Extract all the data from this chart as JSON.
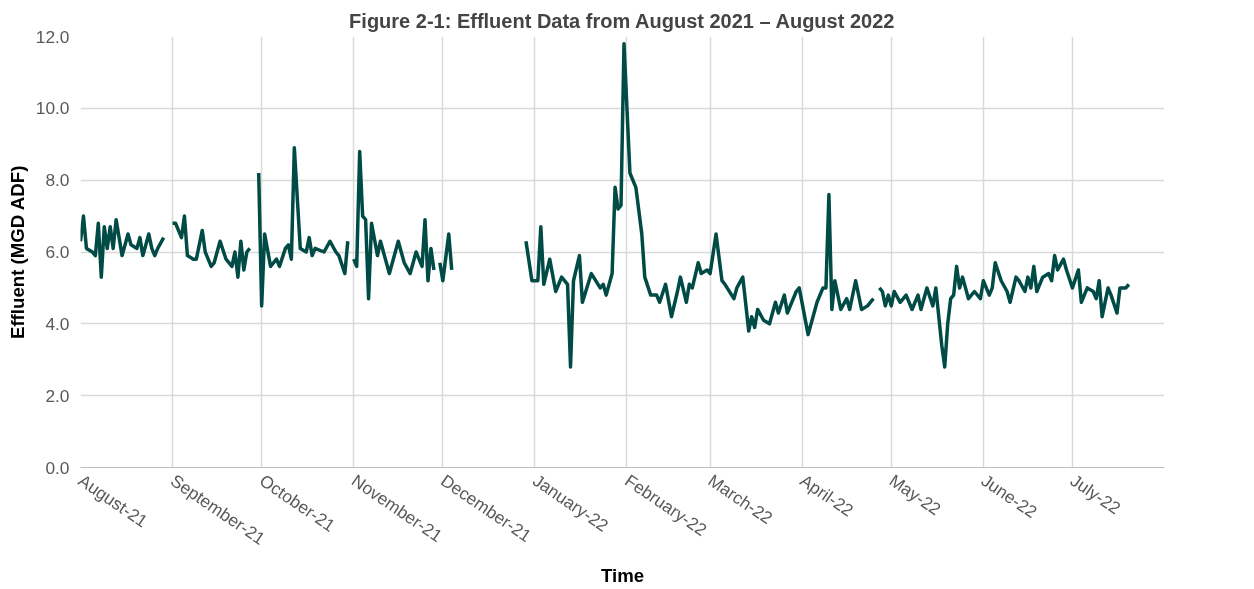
{
  "chart_data": {
    "type": "line",
    "title": "Figure 2-1: Effluent Data from August 2021 – August 2022",
    "xlabel": "Time",
    "ylabel": "Effluent (MGD ADF)",
    "x": [
      "2021-08-01",
      "2021-08-02",
      "2021-08-03",
      "2021-08-05",
      "2021-08-06",
      "2021-08-07",
      "2021-08-08",
      "2021-08-09",
      "2021-08-10",
      "2021-08-11",
      "2021-08-12",
      "2021-08-13",
      "2021-08-15",
      "2021-08-17",
      "2021-08-18",
      "2021-08-20",
      "2021-08-21",
      "2021-08-22",
      "2021-08-24",
      "2021-08-25",
      "2021-08-26",
      "2021-08-27",
      "2021-08-29",
      "2021-08-30",
      "2021-09-01",
      "2021-09-02",
      "2021-09-03",
      "2021-09-04",
      "2021-09-05",
      "2021-09-06",
      "2021-09-08",
      "2021-09-09",
      "2021-09-11",
      "2021-09-12",
      "2021-09-14",
      "2021-09-15",
      "2021-09-17",
      "2021-09-19",
      "2021-09-21",
      "2021-09-22",
      "2021-09-23",
      "2021-09-24",
      "2021-09-25",
      "2021-09-26",
      "2021-09-27",
      "2021-09-28",
      "2021-09-30",
      "2021-10-01",
      "2021-10-02",
      "2021-10-04",
      "2021-10-06",
      "2021-10-07",
      "2021-10-09",
      "2021-10-10",
      "2021-10-11",
      "2021-10-12",
      "2021-10-14",
      "2021-10-16",
      "2021-10-17",
      "2021-10-18",
      "2021-10-19",
      "2021-10-22",
      "2021-10-24",
      "2021-10-26",
      "2021-10-27",
      "2021-10-29",
      "2021-10-30",
      "2021-10-31",
      "2021-11-01",
      "2021-11-02",
      "2021-11-03",
      "2021-11-04",
      "2021-11-05",
      "2021-11-06",
      "2021-11-07",
      "2021-11-09",
      "2021-11-10",
      "2021-11-13",
      "2021-11-16",
      "2021-11-18",
      "2021-11-20",
      "2021-11-22",
      "2021-11-24",
      "2021-11-25",
      "2021-11-26",
      "2021-11-27",
      "2021-11-28",
      "2021-11-29",
      "2021-11-30",
      "2021-12-01",
      "2021-12-03",
      "2021-12-04",
      "2021-12-15",
      "2021-12-29",
      "2021-12-31",
      "2022-01-02",
      "2022-01-03",
      "2022-01-04",
      "2022-01-06",
      "2022-01-08",
      "2022-01-10",
      "2022-01-12",
      "2022-01-13",
      "2022-01-14",
      "2022-01-16",
      "2022-01-17",
      "2022-01-20",
      "2022-01-23",
      "2022-01-24",
      "2022-01-25",
      "2022-01-27",
      "2022-01-28",
      "2022-01-29",
      "2022-01-30",
      "2022-01-31",
      "2022-02-02",
      "2022-02-04",
      "2022-02-06",
      "2022-02-07",
      "2022-02-09",
      "2022-02-11",
      "2022-02-12",
      "2022-02-14",
      "2022-02-16",
      "2022-02-18",
      "2022-02-19",
      "2022-02-21",
      "2022-02-22",
      "2022-02-23",
      "2022-02-25",
      "2022-02-26",
      "2022-02-28",
      "2022-03-01",
      "2022-03-03",
      "2022-03-05",
      "2022-03-06",
      "2022-03-09",
      "2022-03-10",
      "2022-03-12",
      "2022-03-14",
      "2022-03-15",
      "2022-03-16",
      "2022-03-17",
      "2022-03-19",
      "2022-03-21",
      "2022-03-23",
      "2022-03-24",
      "2022-03-26",
      "2022-03-27",
      "2022-03-30",
      "2022-03-31",
      "2022-04-03",
      "2022-04-06",
      "2022-04-08",
      "2022-04-09",
      "2022-04-10",
      "2022-04-11",
      "2022-04-12",
      "2022-04-14",
      "2022-04-16",
      "2022-04-17",
      "2022-04-19",
      "2022-04-21",
      "2022-04-23",
      "2022-04-25",
      "2022-04-26",
      "2022-04-27",
      "2022-04-28",
      "2022-04-29",
      "2022-04-30",
      "2022-05-01",
      "2022-05-02",
      "2022-05-04",
      "2022-05-06",
      "2022-05-08",
      "2022-05-10",
      "2022-05-11",
      "2022-05-13",
      "2022-05-15",
      "2022-05-16",
      "2022-05-18",
      "2022-05-19",
      "2022-05-20",
      "2022-05-21",
      "2022-05-22",
      "2022-05-23",
      "2022-05-24",
      "2022-05-25",
      "2022-05-27",
      "2022-05-29",
      "2022-05-31",
      "2022-06-01",
      "2022-06-03",
      "2022-06-04",
      "2022-06-05",
      "2022-06-07",
      "2022-06-09",
      "2022-06-10",
      "2022-06-12",
      "2022-06-13",
      "2022-06-15",
      "2022-06-16",
      "2022-06-17",
      "2022-06-18",
      "2022-06-19",
      "2022-06-21",
      "2022-06-23",
      "2022-06-24",
      "2022-06-25",
      "2022-06-26",
      "2022-06-28",
      "2022-06-29",
      "2022-07-01",
      "2022-07-03",
      "2022-07-04",
      "2022-07-06",
      "2022-07-08",
      "2022-07-09",
      "2022-07-10",
      "2022-07-11",
      "2022-07-13",
      "2022-07-14",
      "2022-07-16",
      "2022-07-17",
      "2022-07-19",
      "2022-07-20"
    ],
    "series": [
      {
        "color": "#004b45",
        "values": [
          6.3,
          7.0,
          6.1,
          6.0,
          5.9,
          6.8,
          5.3,
          6.7,
          6.1,
          6.7,
          6.1,
          6.9,
          5.9,
          6.5,
          6.2,
          6.1,
          6.4,
          5.9,
          6.5,
          6.1,
          5.9,
          6.1,
          6.4,
          null,
          6.8,
          6.8,
          6.6,
          6.4,
          7.0,
          5.9,
          5.8,
          5.8,
          6.6,
          6.0,
          5.6,
          5.7,
          6.3,
          5.8,
          5.6,
          6.0,
          5.3,
          6.3,
          5.5,
          6.0,
          6.1,
          null,
          8.2,
          4.5,
          6.5,
          5.6,
          5.8,
          5.6,
          6.1,
          6.2,
          5.8,
          8.9,
          6.1,
          6.0,
          6.4,
          5.9,
          6.1,
          6.0,
          6.3,
          6.0,
          5.9,
          5.4,
          6.3,
          null,
          5.8,
          5.6,
          8.8,
          7.0,
          6.9,
          4.7,
          6.8,
          5.9,
          6.3,
          5.4,
          6.3,
          5.7,
          5.4,
          6.0,
          5.6,
          6.9,
          5.2,
          6.1,
          5.5,
          null,
          5.7,
          5.2,
          6.5,
          5.5,
          null,
          6.3,
          5.2,
          5.2,
          6.7,
          5.1,
          5.8,
          4.9,
          5.3,
          5.1,
          2.8,
          5.2,
          5.9,
          4.6,
          5.4,
          5.0,
          5.1,
          4.8,
          5.4,
          7.8,
          7.2,
          7.3,
          11.8,
          8.2,
          7.8,
          6.5,
          5.3,
          4.8,
          4.8,
          4.6,
          5.1,
          4.2,
          4.9,
          5.3,
          4.6,
          5.1,
          5.0,
          5.7,
          5.4,
          5.5,
          5.4,
          6.5,
          5.2,
          5.1,
          4.7,
          5.0,
          5.3,
          3.8,
          4.2,
          3.9,
          4.4,
          4.1,
          4.0,
          4.6,
          4.3,
          4.8,
          4.3,
          4.9,
          5.0,
          3.7,
          4.6,
          5.0,
          5.0,
          7.6,
          4.4,
          5.2,
          4.4,
          4.7,
          4.4,
          5.2,
          4.4,
          4.5,
          4.7,
          null,
          5.0,
          4.9,
          4.5,
          4.8,
          4.5,
          4.9,
          4.6,
          4.8,
          4.4,
          4.8,
          4.4,
          5.0,
          4.5,
          5.0,
          3.4,
          2.8,
          4.0,
          4.7,
          4.8,
          5.6,
          5.0,
          5.3,
          4.7,
          4.9,
          4.7,
          5.2,
          4.8,
          5.0,
          5.7,
          5.2,
          4.9,
          4.6,
          5.3,
          5.2,
          4.9,
          5.3,
          5.0,
          5.6,
          4.9,
          5.3,
          5.4,
          5.2,
          5.9,
          5.5,
          5.8,
          5.5,
          5.0,
          5.5,
          4.6,
          5.0,
          4.9,
          4.7,
          5.2,
          4.2,
          5.0,
          4.8,
          4.3,
          5.0,
          5.0,
          5.1
        ]
      }
    ],
    "xlim": [
      "2021-08-01",
      "2022-08-01"
    ],
    "xticks": [
      {
        "value": "2021-08-01",
        "label": "August-21"
      },
      {
        "value": "2021-09-01",
        "label": "September-21"
      },
      {
        "value": "2021-10-01",
        "label": "October-21"
      },
      {
        "value": "2021-11-01",
        "label": "November-21"
      },
      {
        "value": "2021-12-01",
        "label": "December-21"
      },
      {
        "value": "2022-01-01",
        "label": "January-22"
      },
      {
        "value": "2022-02-01",
        "label": "February-22"
      },
      {
        "value": "2022-03-01",
        "label": "March-22"
      },
      {
        "value": "2022-04-01",
        "label": "April-22"
      },
      {
        "value": "2022-05-01",
        "label": "May-22"
      },
      {
        "value": "2022-06-01",
        "label": "June-22"
      },
      {
        "value": "2022-07-01",
        "label": "July-22"
      }
    ],
    "ylim": [
      0,
      12
    ],
    "yticks": [
      {
        "value": 0,
        "label": "0.0"
      },
      {
        "value": 2,
        "label": "2.0"
      },
      {
        "value": 4,
        "label": "4.0"
      },
      {
        "value": 6,
        "label": "6.0"
      },
      {
        "value": 8,
        "label": "8.0"
      },
      {
        "value": 10,
        "label": "10.0"
      },
      {
        "value": 12,
        "label": "12.0"
      }
    ],
    "grid": true,
    "marker": "none",
    "line_style": "solid"
  }
}
